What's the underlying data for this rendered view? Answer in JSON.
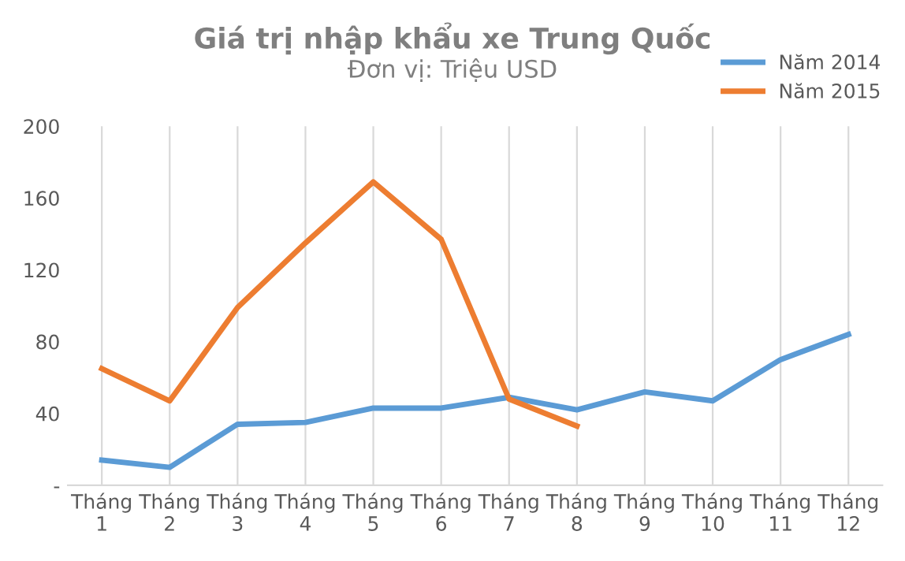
{
  "chart_data": {
    "type": "line",
    "title": "Giá trị nhập khẩu xe Trung Quốc",
    "subtitle": "Đơn vị: Triệu USD",
    "categories": [
      "Tháng\n1",
      "Tháng\n2",
      "Tháng\n3",
      "Tháng\n4",
      "Tháng\n5",
      "Tháng\n6",
      "Tháng\n7",
      "Tháng\n8",
      "Tháng\n9",
      "Tháng\n10",
      "Tháng\n11",
      "Tháng\n12"
    ],
    "series": [
      {
        "name": "Năm 2014",
        "color": "#5b9bd5",
        "values": [
          14,
          10,
          34,
          35,
          43,
          43,
          49,
          42,
          52,
          47,
          70,
          84
        ]
      },
      {
        "name": "Năm 2015",
        "color": "#ed7d31",
        "values": [
          65,
          47,
          99,
          135,
          169,
          137,
          48,
          33,
          null,
          null,
          null,
          null
        ]
      }
    ],
    "ylim": [
      0,
      200
    ],
    "yticks": [
      {
        "value": 0,
        "label": "-"
      },
      40,
      80,
      120,
      160,
      200
    ],
    "grid": "x",
    "legend": "top right",
    "marker": "none",
    "line_style": "solid"
  }
}
